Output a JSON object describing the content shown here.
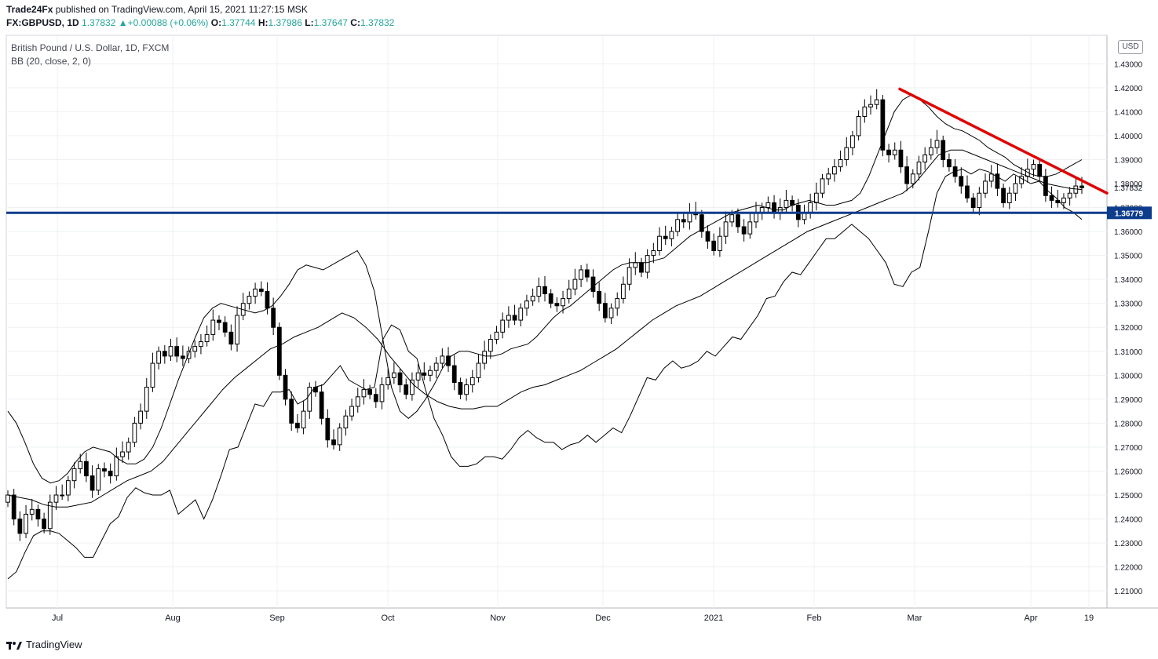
{
  "header": {
    "publisher": "Trade24Fx",
    "published_text": "published on TradingView.com, April 15, 2021 11:27:15 MSK",
    "symbol": "FX:GBPUSD, 1D",
    "last": "1.37832",
    "change": "+0.00088 (+0.06%)",
    "o_label": "O:",
    "o": "1.37744",
    "h_label": "H:",
    "h": "1.37986",
    "l_label": "L:",
    "l": "1.37647",
    "c_label": "C:",
    "c": "1.37832"
  },
  "legend": {
    "instrument": "British Pound / U.S. Dollar, 1D, FXCM",
    "indicator": "BB (20, close, 2, 0)"
  },
  "currency_badge": "USD",
  "footer": {
    "brand": "TradingView"
  },
  "colors": {
    "up_candle": "#ffffff",
    "down_candle": "#000000",
    "candle_border": "#000000",
    "bands": "#000000",
    "trendline": "#e00000",
    "support": "#0d3c8c",
    "grid": "#eef0f3"
  },
  "chart_data": {
    "type": "candlestick",
    "ylim": [
      1.2,
      1.445
    ],
    "y_ticks": [
      "1.21000",
      "1.22000",
      "1.23000",
      "1.24000",
      "1.25000",
      "1.26000",
      "1.27000",
      "1.28000",
      "1.29000",
      "1.30000",
      "1.31000",
      "1.32000",
      "1.33000",
      "1.34000",
      "1.35000",
      "1.36000",
      "1.37000",
      "1.38000",
      "1.39000",
      "1.40000",
      "1.41000",
      "1.42000",
      "1.43000"
    ],
    "x_labels": [
      "Jul",
      "Aug",
      "Sep",
      "Oct",
      "Nov",
      "Dec",
      "2021",
      "Feb",
      "Mar",
      "Apr",
      "19"
    ],
    "last_price_label": "1.37832",
    "support_label": "1.36779",
    "support_level": 1.36779,
    "trendline": [
      {
        "x": "2021-02-24",
        "y": 1.4195
      },
      {
        "x": "2021-04-19",
        "y": 1.376
      }
    ],
    "closes": [
      1.25,
      1.24,
      1.234,
      1.242,
      1.244,
      1.24,
      1.236,
      1.247,
      1.25,
      1.25,
      1.256,
      1.261,
      1.264,
      1.258,
      1.252,
      1.261,
      1.26,
      1.258,
      1.266,
      1.268,
      1.272,
      1.28,
      1.285,
      1.295,
      1.305,
      1.31,
      1.308,
      1.312,
      1.308,
      1.307,
      1.31,
      1.312,
      1.314,
      1.317,
      1.323,
      1.322,
      1.318,
      1.313,
      1.325,
      1.33,
      1.333,
      1.336,
      1.335,
      1.328,
      1.32,
      1.3,
      1.29,
      1.28,
      1.278,
      1.285,
      1.295,
      1.293,
      1.282,
      1.273,
      1.271,
      1.278,
      1.283,
      1.287,
      1.291,
      1.294,
      1.292,
      1.289,
      1.296,
      1.299,
      1.301,
      1.296,
      1.292,
      1.298,
      1.301,
      1.3,
      1.302,
      1.305,
      1.308,
      1.304,
      1.297,
      1.292,
      1.296,
      1.299,
      1.305,
      1.31,
      1.315,
      1.318,
      1.323,
      1.325,
      1.323,
      1.328,
      1.331,
      1.333,
      1.337,
      1.334,
      1.33,
      1.329,
      1.332,
      1.336,
      1.34,
      1.344,
      1.341,
      1.335,
      1.33,
      1.324,
      1.328,
      1.332,
      1.338,
      1.345,
      1.347,
      1.343,
      1.35,
      1.352,
      1.358,
      1.357,
      1.36,
      1.365,
      1.364,
      1.368,
      1.367,
      1.36,
      1.356,
      1.352,
      1.358,
      1.364,
      1.367,
      1.362,
      1.359,
      1.364,
      1.368,
      1.37,
      1.372,
      1.368,
      1.37,
      1.373,
      1.371,
      1.365,
      1.368,
      1.372,
      1.376,
      1.382,
      1.384,
      1.387,
      1.39,
      1.395,
      1.4,
      1.408,
      1.412,
      1.413,
      1.415,
      1.394,
      1.392,
      1.394,
      1.387,
      1.38,
      1.384,
      1.389,
      1.392,
      1.395,
      1.398,
      1.39,
      1.387,
      1.383,
      1.379,
      1.374,
      1.37,
      1.376,
      1.381,
      1.384,
      1.378,
      1.372,
      1.376,
      1.38,
      1.383,
      1.386,
      1.388,
      1.383,
      1.375,
      1.373,
      1.372,
      1.374,
      1.376,
      1.379,
      1.3783
    ],
    "bb_upper": [
      1.285,
      1.28,
      1.272,
      1.263,
      1.257,
      1.255,
      1.256,
      1.259,
      1.264,
      1.268,
      1.27,
      1.269,
      1.268,
      1.265,
      1.263,
      1.263,
      1.265,
      1.27,
      1.278,
      1.288,
      1.298,
      1.307,
      1.316,
      1.324,
      1.328,
      1.33,
      1.329,
      1.328,
      1.327,
      1.326,
      1.327,
      1.329,
      1.333,
      1.338,
      1.344,
      1.346,
      1.345,
      1.344,
      1.346,
      1.348,
      1.35,
      1.352,
      1.346,
      1.335,
      1.315,
      1.295,
      1.285,
      1.282,
      1.285,
      1.29,
      1.296,
      1.303,
      1.308,
      1.31,
      1.31,
      1.309,
      1.308,
      1.308,
      1.309,
      1.311,
      1.312,
      1.313,
      1.316,
      1.32,
      1.324,
      1.327,
      1.329,
      1.332,
      1.335,
      1.338,
      1.341,
      1.344,
      1.346,
      1.347,
      1.347,
      1.347,
      1.348,
      1.349,
      1.352,
      1.355,
      1.358,
      1.36,
      1.362,
      1.364,
      1.366,
      1.368,
      1.369,
      1.37,
      1.371,
      1.37,
      1.369,
      1.369,
      1.371,
      1.372,
      1.373,
      1.372,
      1.371,
      1.371,
      1.372,
      1.373,
      1.376,
      1.383,
      1.392,
      1.401,
      1.41,
      1.415,
      1.417,
      1.415,
      1.412,
      1.408,
      1.405,
      1.403,
      1.402,
      1.4,
      1.398,
      1.395,
      1.393,
      1.391,
      1.388,
      1.386,
      1.384,
      1.383,
      1.383,
      1.384,
      1.386,
      1.388,
      1.39
    ],
    "bb_mid": [
      1.25,
      1.249,
      1.248,
      1.246,
      1.245,
      1.245,
      1.246,
      1.247,
      1.25,
      1.253,
      1.256,
      1.258,
      1.26,
      1.264,
      1.27,
      1.276,
      1.282,
      1.288,
      1.294,
      1.299,
      1.303,
      1.307,
      1.311,
      1.313,
      1.316,
      1.318,
      1.32,
      1.323,
      1.326,
      1.324,
      1.32,
      1.315,
      1.308,
      1.302,
      1.296,
      1.292,
      1.289,
      1.287,
      1.286,
      1.286,
      1.287,
      1.287,
      1.29,
      1.293,
      1.295,
      1.296,
      1.298,
      1.3,
      1.302,
      1.305,
      1.308,
      1.311,
      1.315,
      1.319,
      1.323,
      1.326,
      1.329,
      1.331,
      1.333,
      1.336,
      1.339,
      1.342,
      1.345,
      1.348,
      1.351,
      1.354,
      1.357,
      1.36,
      1.362,
      1.364,
      1.366,
      1.368,
      1.37,
      1.372,
      1.374,
      1.376,
      1.38,
      1.386,
      1.392,
      1.394,
      1.394,
      1.392,
      1.39,
      1.388,
      1.386,
      1.384,
      1.382,
      1.38,
      1.379,
      1.378,
      1.3775
    ]
  }
}
